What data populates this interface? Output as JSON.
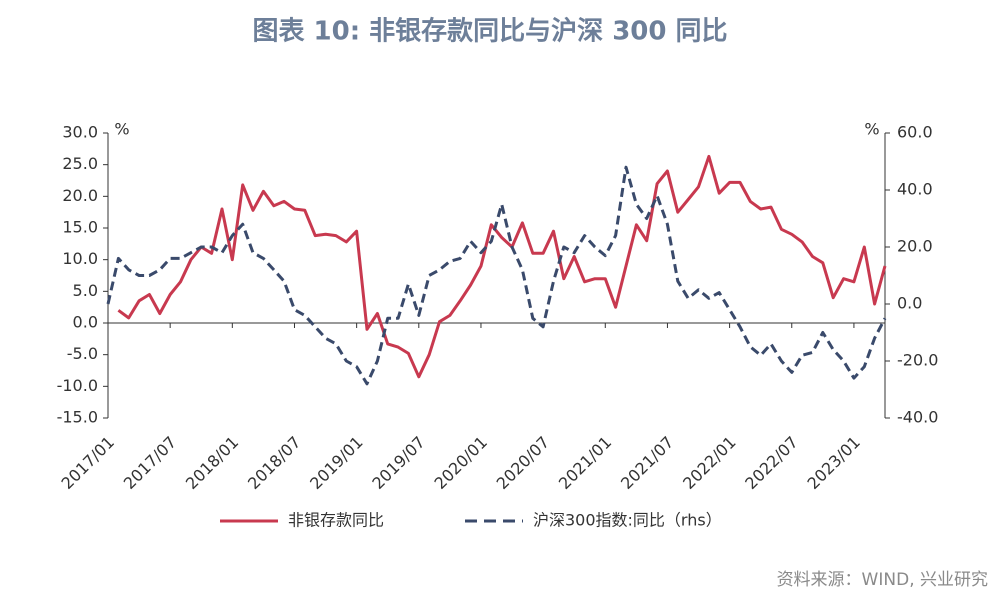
{
  "chart_data": {
    "type": "line",
    "title": "图表 10: 非银存款同比与沪深 300 同比",
    "source": "资料来源：WIND, 兴业研究",
    "ylabel": "%",
    "y2label": "%",
    "categories": [
      "2017/01",
      null,
      null,
      null,
      null,
      null,
      "2017/07",
      null,
      null,
      null,
      null,
      null,
      "2018/01",
      null,
      null,
      null,
      null,
      null,
      "2018/07",
      null,
      null,
      null,
      null,
      null,
      "2019/01",
      null,
      null,
      null,
      null,
      null,
      "2019/07",
      null,
      null,
      null,
      null,
      null,
      "2020/01",
      null,
      null,
      null,
      null,
      null,
      "2020/07",
      null,
      null,
      null,
      null,
      null,
      "2021/01",
      null,
      null,
      null,
      null,
      null,
      "2021/07",
      null,
      null,
      null,
      null,
      null,
      "2022/01",
      null,
      null,
      null,
      null,
      null,
      "2022/07",
      null,
      null,
      null,
      null,
      null,
      "2023/01",
      null,
      null,
      null
    ],
    "ylim": [
      -15,
      30
    ],
    "yticks": [
      {
        "value": -15,
        "label": "-15.0"
      },
      {
        "value": -10,
        "label": "-10.0"
      },
      {
        "value": -5,
        "label": "-5.0"
      },
      {
        "value": 0,
        "label": "0.0"
      },
      {
        "value": 5,
        "label": "5.0"
      },
      {
        "value": 10,
        "label": "10.0"
      },
      {
        "value": 15,
        "label": "15.0"
      },
      {
        "value": 20,
        "label": "20.0"
      },
      {
        "value": 25,
        "label": "25.0"
      },
      {
        "value": 30,
        "label": "30.0"
      }
    ],
    "y2lim": [
      -40,
      60
    ],
    "y2ticks": [
      {
        "value": -40,
        "label": "-40.0"
      },
      {
        "value": -20,
        "label": "-20.0"
      },
      {
        "value": 0,
        "label": "0.0"
      },
      {
        "value": 20,
        "label": "20.0"
      },
      {
        "value": 40,
        "label": "40.0"
      },
      {
        "value": 60,
        "label": "60.0"
      }
    ],
    "legend": "bottom",
    "series": [
      {
        "name": "非银存款同比",
        "color": "#c8394f",
        "dash": "solid",
        "values": [
          null,
          2.0,
          0.8,
          3.5,
          4.5,
          1.5,
          4.5,
          6.5,
          10,
          12,
          11,
          18,
          10,
          21.8,
          17.8,
          20.8,
          18.5,
          19.2,
          18,
          17.8,
          13.8,
          14,
          13.8,
          12.8,
          14.5,
          -1,
          1.5,
          -3.3,
          -3.8,
          -4.8,
          -8.5,
          -5,
          0.2,
          1.2,
          3.5,
          6,
          9,
          15.5,
          13.5,
          12,
          15.8,
          11,
          11,
          14.5,
          7,
          10.5,
          6.5,
          7,
          7,
          2.5,
          9,
          15.5,
          13,
          22,
          24,
          17.5,
          19.5,
          21.5,
          26.3,
          20.5,
          22.2,
          22.2,
          19.2,
          18,
          18.3,
          14.8,
          14,
          12.8,
          10.5,
          9.5,
          4,
          7,
          6.5,
          12,
          3,
          9
        ]
      },
      {
        "name": "沪深300指数:同比（rhs）",
        "color": "#3a4a6b",
        "dash": "dashed",
        "axis": "y2",
        "values": [
          0,
          16,
          12,
          10,
          10,
          12,
          16,
          16,
          18,
          20,
          20,
          18,
          24,
          28,
          18,
          16,
          12,
          8,
          -2,
          -4,
          -8,
          -12,
          -14,
          -20,
          -22,
          -28,
          -20,
          -5,
          -5,
          7,
          -4,
          10,
          12,
          15,
          16,
          22,
          18,
          22,
          35,
          20,
          12,
          -5,
          -8,
          8,
          20,
          18,
          24,
          20,
          17,
          24,
          48,
          35,
          30,
          38,
          28,
          8,
          2,
          5,
          2,
          4,
          -2,
          -8,
          -15,
          -18,
          -14,
          -20,
          -24,
          -18,
          -17,
          -10,
          -16,
          -20,
          -26,
          -22,
          -12,
          -5
        ]
      }
    ]
  }
}
